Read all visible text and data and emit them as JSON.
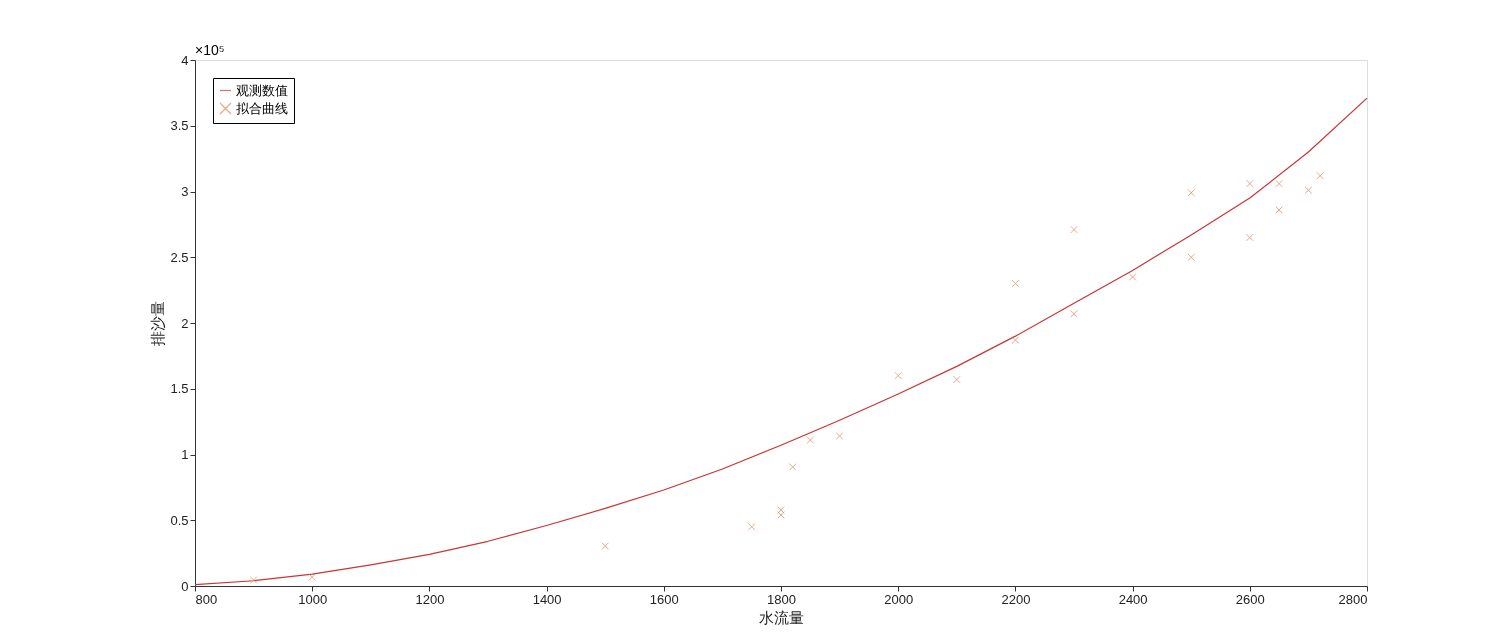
{
  "chart_data": {
    "type": "scatter",
    "xlabel": "水流量",
    "ylabel": "排沙量",
    "annotations": [
      "×10⁵"
    ],
    "xlim": [
      800,
      2800
    ],
    "xticks": [
      800,
      1000,
      1200,
      1400,
      1600,
      1800,
      2000,
      2200,
      2400,
      2600,
      2800
    ],
    "ylim": [
      0,
      4
    ],
    "yticks": [
      0,
      0.5,
      1,
      1.5,
      2,
      2.5,
      3,
      3.5,
      4
    ],
    "grid": false,
    "legend": "top left",
    "series": [
      {
        "name": "观测数值",
        "type": "line",
        "color": "#cc3333",
        "marker": "none",
        "line_style": "solid",
        "x": [
          800,
          900,
          1000,
          1100,
          1200,
          1300,
          1400,
          1500,
          1600,
          1700,
          1800,
          1900,
          2000,
          2100,
          2200,
          2300,
          2400,
          2500,
          2600,
          2700,
          2800
        ],
        "values": [
          0.01,
          0.04,
          0.09,
          0.16,
          0.24,
          0.34,
          0.46,
          0.59,
          0.73,
          0.89,
          1.07,
          1.26,
          1.46,
          1.67,
          1.9,
          2.15,
          2.4,
          2.67,
          2.95,
          3.3,
          3.71
        ]
      },
      {
        "name": "拟合曲线",
        "color": "#d9865a",
        "marker": "cross",
        "x": [
          900,
          1000,
          1500,
          1750,
          1800,
          1800,
          1820,
          1850,
          1900,
          2000,
          2100,
          2200,
          2200,
          2300,
          2300,
          2400,
          2500,
          2500,
          2600,
          2600,
          2650,
          2650,
          2700,
          2720
        ],
        "values": [
          0.046,
          0.068,
          0.304,
          0.45,
          0.578,
          0.54,
          0.905,
          1.11,
          1.14,
          1.6,
          1.57,
          2.3,
          1.87,
          2.71,
          2.07,
          2.35,
          2.99,
          2.5,
          3.06,
          2.65,
          3.06,
          2.86,
          3.01,
          3.12
        ]
      }
    ]
  }
}
